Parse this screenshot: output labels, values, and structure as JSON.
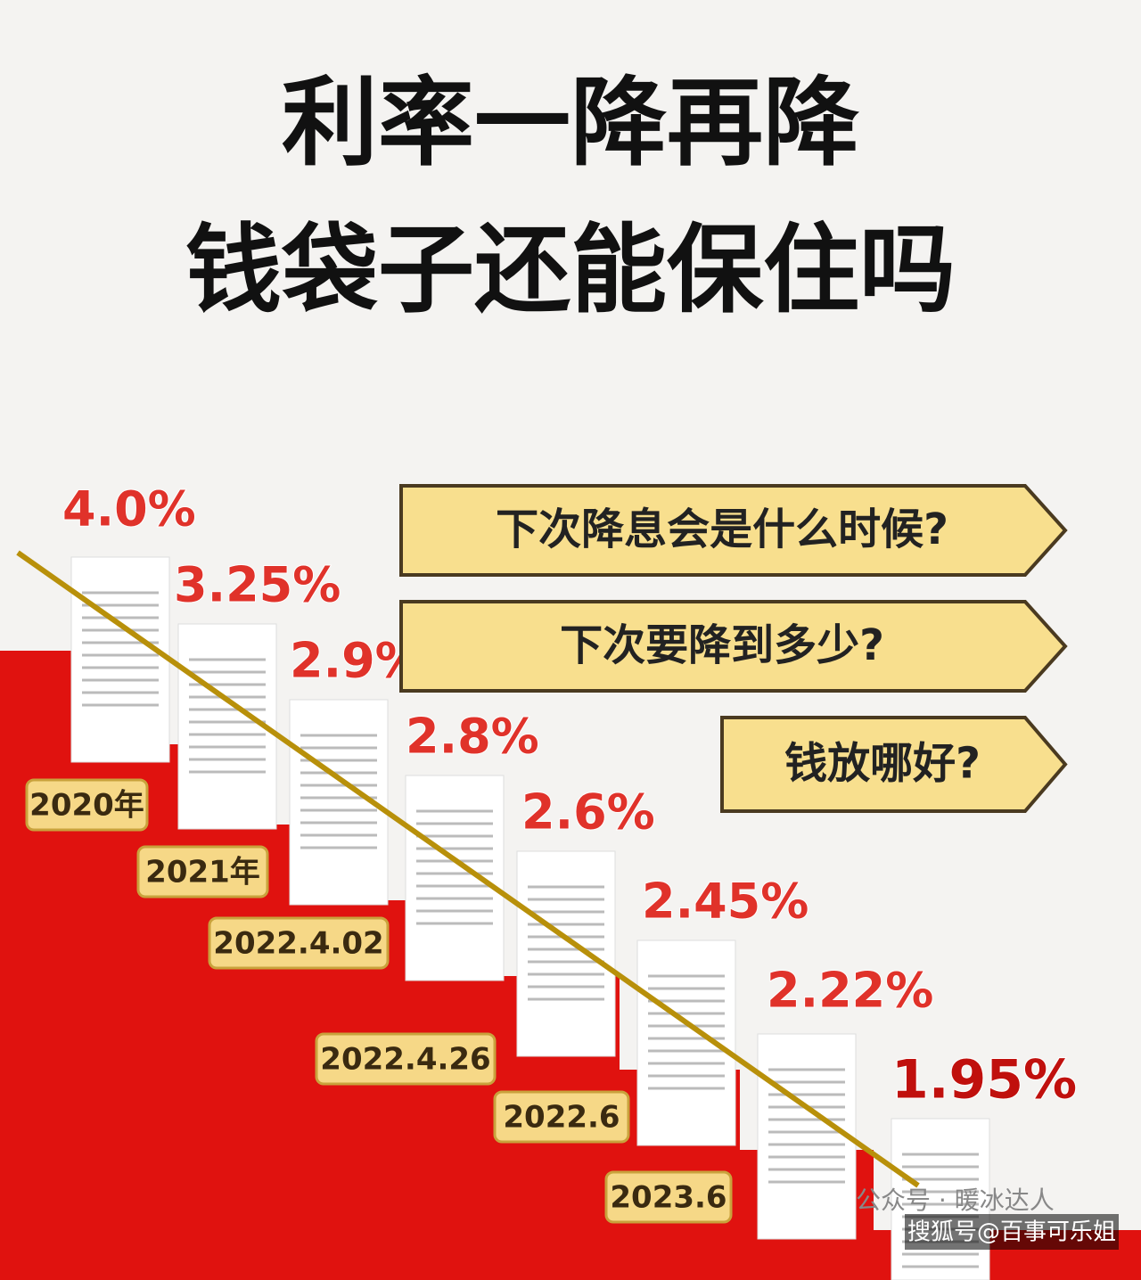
{
  "header": {
    "lines": [
      "利率一降再降",
      "钱袋子还能保住吗"
    ]
  },
  "steps": [
    {
      "rate": "4.0%",
      "date": "2020年"
    },
    {
      "rate": "3.25%",
      "date": "2021年"
    },
    {
      "rate": "2.9%",
      "date": "2022.4.02"
    },
    {
      "rate": "2.8%",
      "date": "2022.4.26"
    },
    {
      "rate": "2.6%",
      "date": "2022.6"
    },
    {
      "rate": "2.45%",
      "date": "2023.6"
    },
    {
      "rate": "2.22%"
    },
    {
      "rate": "1.95%"
    }
  ],
  "questions": [
    "下次降息会是什么时候?",
    "下次要降到多少?",
    "钱放哪好?"
  ],
  "watermarks": [
    "公众号 · 暖冰达人",
    "搜狐号@百事可乐姐"
  ]
}
